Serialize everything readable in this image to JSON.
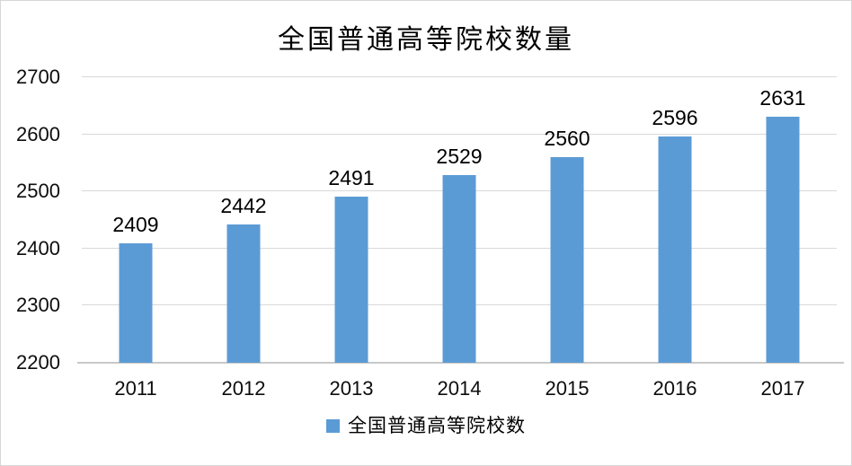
{
  "title": "全国普通高等院校数量",
  "legend": {
    "label": "全国普通高等院校数",
    "marker_color": "#5B9BD5"
  },
  "colors": {
    "bar": "#5B9BD5",
    "gridline": "#D9D9D9",
    "axis_line": "#C8C8C8",
    "text": "#000000",
    "frame_border": "#D6D6D6"
  },
  "chart_data": {
    "type": "bar",
    "title": "全国普通高等院校数量",
    "categories": [
      "2011",
      "2012",
      "2013",
      "2014",
      "2015",
      "2016",
      "2017"
    ],
    "series": [
      {
        "name": "全国普通高等院校数",
        "values": [
          2409,
          2442,
          2491,
          2529,
          2560,
          2596,
          2631
        ],
        "color": "#5B9BD5"
      }
    ],
    "data_labels": [
      "2409",
      "2442",
      "2491",
      "2529",
      "2560",
      "2596",
      "2631"
    ],
    "xlabel": "",
    "ylabel": "",
    "ylim": [
      2200,
      2700
    ],
    "yticks": [
      2200,
      2300,
      2400,
      2500,
      2600,
      2700
    ],
    "grid": true,
    "legend_position": "bottom"
  }
}
